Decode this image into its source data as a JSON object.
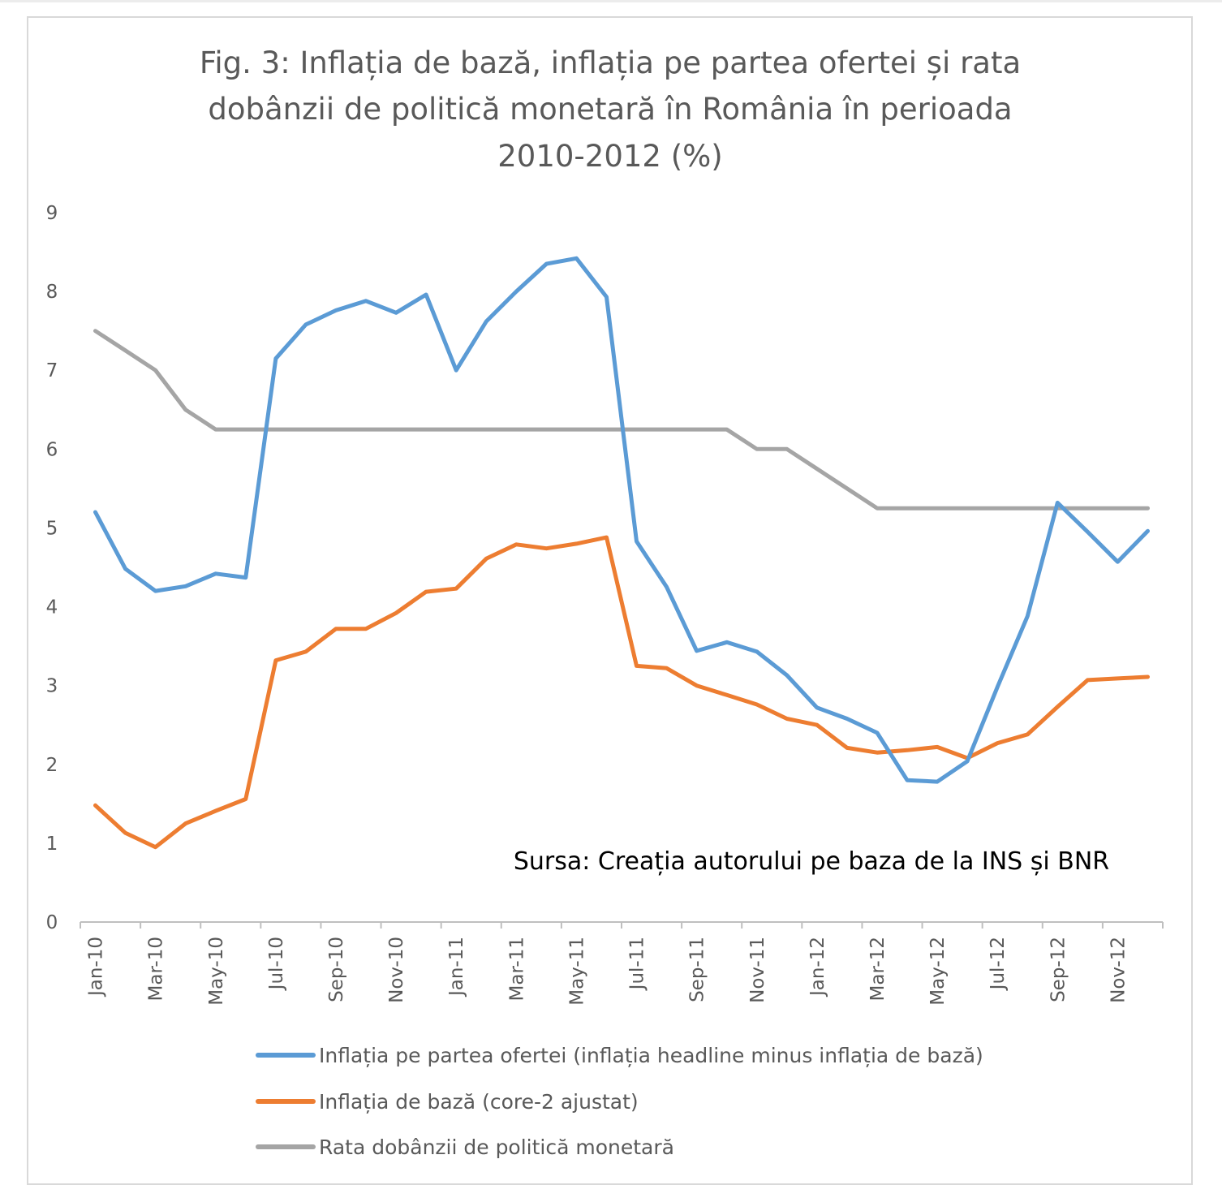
{
  "chart_data": {
    "type": "line",
    "title_lines": [
      "Fig. 3: Inflația de bază, inflația pe partea ofertei și rata",
      "dobânzii de politică monetară în România în perioada",
      "2010-2012 (%)"
    ],
    "annotation": "Sursa: Creația autorului pe baza de la INS și BNR",
    "x": [
      "Jan-10",
      "Feb-10",
      "Mar-10",
      "Apr-10",
      "May-10",
      "Jun-10",
      "Jul-10",
      "Aug-10",
      "Sep-10",
      "Oct-10",
      "Nov-10",
      "Dec-10",
      "Jan-11",
      "Feb-11",
      "Mar-11",
      "Apr-11",
      "May-11",
      "Jun-11",
      "Jul-11",
      "Aug-11",
      "Sep-11",
      "Oct-11",
      "Nov-11",
      "Dec-11",
      "Jan-12",
      "Feb-12",
      "Mar-12",
      "Apr-12",
      "May-12",
      "Jun-12",
      "Jul-12",
      "Aug-12",
      "Sep-12",
      "Oct-12",
      "Nov-12",
      "Dec-12"
    ],
    "x_tick_labels": [
      "Jan-10",
      "Mar-10",
      "May-10",
      "Jul-10",
      "Sep-10",
      "Nov-10",
      "Jan-11",
      "Mar-11",
      "May-11",
      "Jul-11",
      "Sep-11",
      "Nov-11",
      "Jan-12",
      "Mar-12",
      "May-12",
      "Jul-12",
      "Sep-12",
      "Nov-12"
    ],
    "y_ticks": [
      "0",
      "1",
      "2",
      "3",
      "4",
      "5",
      "6",
      "7",
      "8",
      "9"
    ],
    "ylim": [
      0,
      9
    ],
    "grid": false,
    "legend_position": "bottom",
    "series": [
      {
        "name": "Inflația pe partea ofertei (inflația headline minus inflația de bază)",
        "color": "#5b9bd5",
        "values": [
          5.2,
          4.48,
          4.2,
          4.26,
          4.42,
          4.37,
          7.15,
          7.58,
          7.76,
          7.88,
          7.73,
          7.96,
          7.0,
          7.62,
          8.0,
          8.35,
          8.42,
          7.93,
          4.83,
          4.25,
          3.44,
          3.55,
          3.43,
          3.13,
          2.72,
          2.58,
          2.4,
          1.8,
          1.78,
          2.04,
          2.98,
          3.88,
          5.32,
          4.95,
          4.57,
          4.96
        ]
      },
      {
        "name": "Inflația de bază (core-2 ajustat)",
        "color": "#ed7d31",
        "values": [
          1.48,
          1.13,
          0.95,
          1.25,
          1.41,
          1.56,
          3.32,
          3.43,
          3.72,
          3.72,
          3.92,
          4.19,
          4.23,
          4.61,
          4.79,
          4.74,
          4.8,
          4.88,
          3.25,
          3.22,
          3.0,
          2.88,
          2.76,
          2.58,
          2.5,
          2.21,
          2.15,
          2.18,
          2.22,
          2.08,
          2.27,
          2.38,
          2.73,
          3.07,
          3.09,
          3.11
        ]
      },
      {
        "name": "Rata dobânzii de politică monetară",
        "color": "#a5a5a5",
        "values": [
          7.5,
          7.25,
          7.0,
          6.5,
          6.25,
          6.25,
          6.25,
          6.25,
          6.25,
          6.25,
          6.25,
          6.25,
          6.25,
          6.25,
          6.25,
          6.25,
          6.25,
          6.25,
          6.25,
          6.25,
          6.25,
          6.25,
          6.0,
          6.0,
          5.75,
          5.5,
          5.25,
          5.25,
          5.25,
          5.25,
          5.25,
          5.25,
          5.25,
          5.25,
          5.25,
          5.25
        ]
      }
    ]
  }
}
